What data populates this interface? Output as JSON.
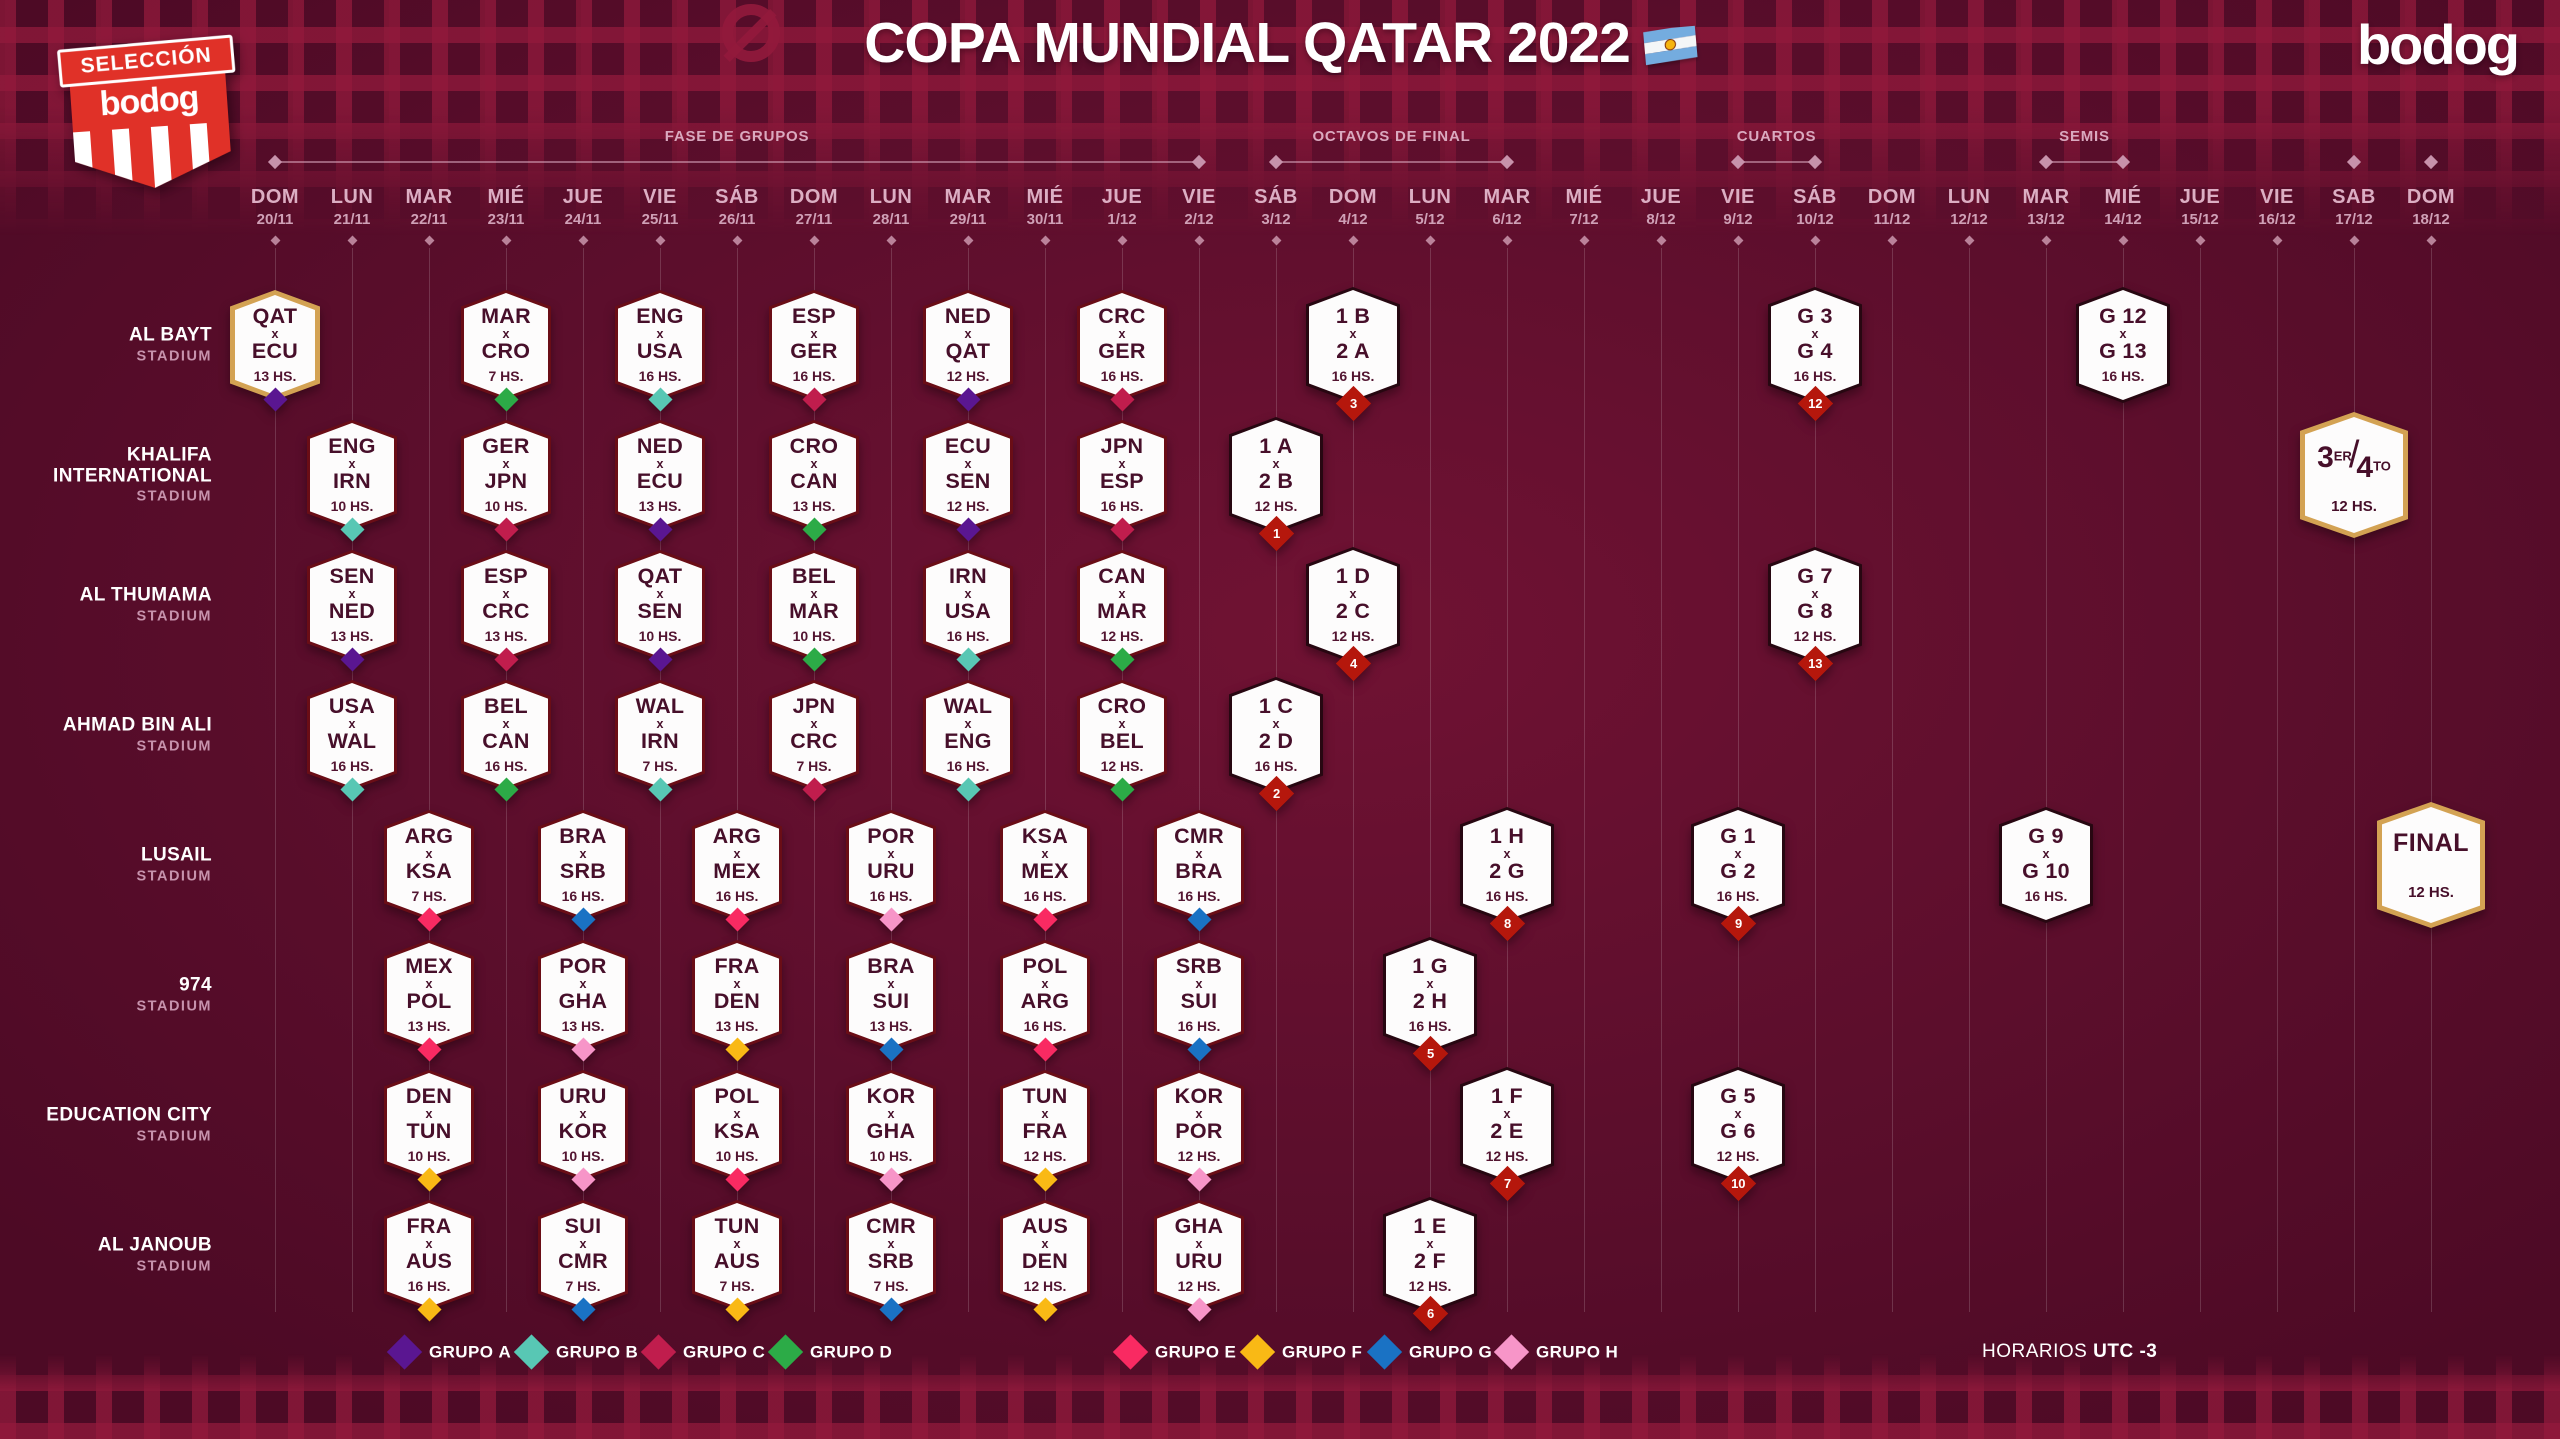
{
  "title": "COPA MUNDIAL QATAR 2022",
  "brand_logo": "bodog",
  "badge": {
    "top": "SELECCIÓN",
    "word": "bodog"
  },
  "footer": {
    "horarios_label": "HORARIOS",
    "utc_label": "UTC -3"
  },
  "palette": {
    "purple": "#5a1691",
    "teal": "#58c7b4",
    "crimson": "#c01d4d",
    "green": "#2cab47",
    "pink": "#f92a62",
    "yellow": "#f9b915",
    "blue": "#1a72c4",
    "lightpink": "#f795c8",
    "badge_red": "#b5170c",
    "gold": "#d3a253",
    "card_border": "#6a0d16",
    "ko_border": "#270711"
  },
  "phases": [
    {
      "label": "FASE DE GRUPOS",
      "from": 0,
      "to": 12
    },
    {
      "label": "OCTAVOS DE FINAL",
      "from": 13,
      "to": 16
    },
    {
      "label": "CUARTOS",
      "from": 19,
      "to": 20
    },
    {
      "label": "SEMIS",
      "from": 23,
      "to": 24
    }
  ],
  "lone_top_diamond_cols": [
    27,
    28
  ],
  "dates": [
    {
      "dow": "DOM",
      "d": "20/11"
    },
    {
      "dow": "LUN",
      "d": "21/11"
    },
    {
      "dow": "MAR",
      "d": "22/11"
    },
    {
      "dow": "MIÉ",
      "d": "23/11"
    },
    {
      "dow": "JUE",
      "d": "24/11"
    },
    {
      "dow": "VIE",
      "d": "25/11"
    },
    {
      "dow": "SÁB",
      "d": "26/11"
    },
    {
      "dow": "DOM",
      "d": "27/11"
    },
    {
      "dow": "LUN",
      "d": "28/11"
    },
    {
      "dow": "MAR",
      "d": "29/11"
    },
    {
      "dow": "MIÉ",
      "d": "30/11"
    },
    {
      "dow": "JUE",
      "d": "1/12"
    },
    {
      "dow": "VIE",
      "d": "2/12"
    },
    {
      "dow": "SÁB",
      "d": "3/12"
    },
    {
      "dow": "DOM",
      "d": "4/12"
    },
    {
      "dow": "LUN",
      "d": "5/12"
    },
    {
      "dow": "MAR",
      "d": "6/12"
    },
    {
      "dow": "MIÉ",
      "d": "7/12"
    },
    {
      "dow": "JUE",
      "d": "8/12"
    },
    {
      "dow": "VIE",
      "d": "9/12"
    },
    {
      "dow": "SÁB",
      "d": "10/12"
    },
    {
      "dow": "DOM",
      "d": "11/12"
    },
    {
      "dow": "LUN",
      "d": "12/12"
    },
    {
      "dow": "MAR",
      "d": "13/12"
    },
    {
      "dow": "MIÉ",
      "d": "14/12"
    },
    {
      "dow": "JUE",
      "d": "15/12"
    },
    {
      "dow": "VIE",
      "d": "16/12"
    },
    {
      "dow": "SAB",
      "d": "17/12"
    },
    {
      "dow": "DOM",
      "d": "18/12"
    }
  ],
  "stadiums": [
    {
      "name": "AL BAYT",
      "sub": "STADIUM"
    },
    {
      "name": "KHALIFA INTERNATIONAL",
      "sub": "STADIUM"
    },
    {
      "name": "AL THUMAMA",
      "sub": "STADIUM"
    },
    {
      "name": "AHMAD BIN ALI",
      "sub": "STADIUM"
    },
    {
      "name": "LUSAIL",
      "sub": "STADIUM"
    },
    {
      "name": "974",
      "sub": "STADIUM"
    },
    {
      "name": "EDUCATION CITY",
      "sub": "STADIUM"
    },
    {
      "name": "AL JANOUB",
      "sub": "STADIUM"
    }
  ],
  "legend": [
    {
      "prefix": "GRUPO",
      "letter": "A",
      "color_key": "purple"
    },
    {
      "prefix": "GRUPO",
      "letter": "B",
      "color_key": "teal"
    },
    {
      "prefix": "GRUPO",
      "letter": "C",
      "color_key": "crimson"
    },
    {
      "prefix": "GRUPO",
      "letter": "D",
      "color_key": "green"
    },
    {
      "prefix": "GRUPO",
      "letter": "E",
      "color_key": "pink"
    },
    {
      "prefix": "GRUPO",
      "letter": "F",
      "color_key": "yellow"
    },
    {
      "prefix": "GRUPO",
      "letter": "G",
      "color_key": "blue"
    },
    {
      "prefix": "GRUPO",
      "letter": "H",
      "color_key": "lightpink"
    }
  ],
  "cards": [
    {
      "type": "group",
      "home": "QAT",
      "away": "ECU",
      "time": "13 HS.",
      "col": 0,
      "row": 0,
      "diamond": "purple",
      "border": "gold"
    },
    {
      "type": "group",
      "home": "ENG",
      "away": "IRN",
      "time": "10 HS.",
      "col": 1,
      "row": 1,
      "diamond": "teal"
    },
    {
      "type": "group",
      "home": "SEN",
      "away": "NED",
      "time": "13 HS.",
      "col": 1,
      "row": 2,
      "diamond": "purple"
    },
    {
      "type": "group",
      "home": "USA",
      "away": "WAL",
      "time": "16 HS.",
      "col": 1,
      "row": 3,
      "diamond": "teal"
    },
    {
      "type": "group",
      "home": "ARG",
      "away": "KSA",
      "time": "7 HS.",
      "col": 2,
      "row": 4,
      "diamond": "pink"
    },
    {
      "type": "group",
      "home": "MEX",
      "away": "POL",
      "time": "13 HS.",
      "col": 2,
      "row": 5,
      "diamond": "pink"
    },
    {
      "type": "group",
      "home": "DEN",
      "away": "TUN",
      "time": "10 HS.",
      "col": 2,
      "row": 6,
      "diamond": "yellow"
    },
    {
      "type": "group",
      "home": "FRA",
      "away": "AUS",
      "time": "16 HS.",
      "col": 2,
      "row": 7,
      "diamond": "yellow"
    },
    {
      "type": "group",
      "home": "MAR",
      "away": "CRO",
      "time": "7 HS.",
      "col": 3,
      "row": 0,
      "diamond": "green"
    },
    {
      "type": "group",
      "home": "GER",
      "away": "JPN",
      "time": "10 HS.",
      "col": 3,
      "row": 1,
      "diamond": "crimson"
    },
    {
      "type": "group",
      "home": "ESP",
      "away": "CRC",
      "time": "13 HS.",
      "col": 3,
      "row": 2,
      "diamond": "crimson"
    },
    {
      "type": "group",
      "home": "BEL",
      "away": "CAN",
      "time": "16 HS.",
      "col": 3,
      "row": 3,
      "diamond": "green"
    },
    {
      "type": "group",
      "home": "BRA",
      "away": "SRB",
      "time": "16 HS.",
      "col": 4,
      "row": 4,
      "diamond": "blue"
    },
    {
      "type": "group",
      "home": "POR",
      "away": "GHA",
      "time": "13 HS.",
      "col": 4,
      "row": 5,
      "diamond": "lightpink"
    },
    {
      "type": "group",
      "home": "URU",
      "away": "KOR",
      "time": "10 HS.",
      "col": 4,
      "row": 6,
      "diamond": "lightpink"
    },
    {
      "type": "group",
      "home": "SUI",
      "away": "CMR",
      "time": "7 HS.",
      "col": 4,
      "row": 7,
      "diamond": "blue"
    },
    {
      "type": "group",
      "home": "ENG",
      "away": "USA",
      "time": "16 HS.",
      "col": 5,
      "row": 0,
      "diamond": "teal"
    },
    {
      "type": "group",
      "home": "NED",
      "away": "ECU",
      "time": "13 HS.",
      "col": 5,
      "row": 1,
      "diamond": "purple"
    },
    {
      "type": "group",
      "home": "QAT",
      "away": "SEN",
      "time": "10 HS.",
      "col": 5,
      "row": 2,
      "diamond": "purple"
    },
    {
      "type": "group",
      "home": "WAL",
      "away": "IRN",
      "time": "7 HS.",
      "col": 5,
      "row": 3,
      "diamond": "teal"
    },
    {
      "type": "group",
      "home": "ARG",
      "away": "MEX",
      "time": "16 HS.",
      "col": 6,
      "row": 4,
      "diamond": "pink"
    },
    {
      "type": "group",
      "home": "FRA",
      "away": "DEN",
      "time": "13 HS.",
      "col": 6,
      "row": 5,
      "diamond": "yellow"
    },
    {
      "type": "group",
      "home": "POL",
      "away": "KSA",
      "time": "10 HS.",
      "col": 6,
      "row": 6,
      "diamond": "pink"
    },
    {
      "type": "group",
      "home": "TUN",
      "away": "AUS",
      "time": "7 HS.",
      "col": 6,
      "row": 7,
      "diamond": "yellow"
    },
    {
      "type": "group",
      "home": "ESP",
      "away": "GER",
      "time": "16 HS.",
      "col": 7,
      "row": 0,
      "diamond": "crimson"
    },
    {
      "type": "group",
      "home": "CRO",
      "away": "CAN",
      "time": "13 HS.",
      "col": 7,
      "row": 1,
      "diamond": "green"
    },
    {
      "type": "group",
      "home": "BEL",
      "away": "MAR",
      "time": "10 HS.",
      "col": 7,
      "row": 2,
      "diamond": "green"
    },
    {
      "type": "group",
      "home": "JPN",
      "away": "CRC",
      "time": "7 HS.",
      "col": 7,
      "row": 3,
      "diamond": "crimson"
    },
    {
      "type": "group",
      "home": "POR",
      "away": "URU",
      "time": "16 HS.",
      "col": 8,
      "row": 4,
      "diamond": "lightpink"
    },
    {
      "type": "group",
      "home": "BRA",
      "away": "SUI",
      "time": "13 HS.",
      "col": 8,
      "row": 5,
      "diamond": "blue"
    },
    {
      "type": "group",
      "home": "KOR",
      "away": "GHA",
      "time": "10 HS.",
      "col": 8,
      "row": 6,
      "diamond": "lightpink"
    },
    {
      "type": "group",
      "home": "CMR",
      "away": "SRB",
      "time": "7 HS.",
      "col": 8,
      "row": 7,
      "diamond": "blue"
    },
    {
      "type": "group",
      "home": "NED",
      "away": "QAT",
      "time": "12 HS.",
      "col": 9,
      "row": 0,
      "diamond": "purple"
    },
    {
      "type": "group",
      "home": "ECU",
      "away": "SEN",
      "time": "12 HS.",
      "col": 9,
      "row": 1,
      "diamond": "purple"
    },
    {
      "type": "group",
      "home": "IRN",
      "away": "USA",
      "time": "16 HS.",
      "col": 9,
      "row": 2,
      "diamond": "teal"
    },
    {
      "type": "group",
      "home": "WAL",
      "away": "ENG",
      "time": "16 HS.",
      "col": 9,
      "row": 3,
      "diamond": "teal"
    },
    {
      "type": "group",
      "home": "KSA",
      "away": "MEX",
      "time": "16 HS.",
      "col": 10,
      "row": 4,
      "diamond": "pink"
    },
    {
      "type": "group",
      "home": "POL",
      "away": "ARG",
      "time": "16 HS.",
      "col": 10,
      "row": 5,
      "diamond": "pink"
    },
    {
      "type": "group",
      "home": "TUN",
      "away": "FRA",
      "time": "12 HS.",
      "col": 10,
      "row": 6,
      "diamond": "yellow"
    },
    {
      "type": "group",
      "home": "AUS",
      "away": "DEN",
      "time": "12 HS.",
      "col": 10,
      "row": 7,
      "diamond": "yellow"
    },
    {
      "type": "group",
      "home": "CRC",
      "away": "GER",
      "time": "16 HS.",
      "col": 11,
      "row": 0,
      "diamond": "crimson"
    },
    {
      "type": "group",
      "home": "JPN",
      "away": "ESP",
      "time": "16 HS.",
      "col": 11,
      "row": 1,
      "diamond": "crimson"
    },
    {
      "type": "group",
      "home": "CAN",
      "away": "MAR",
      "time": "12 HS.",
      "col": 11,
      "row": 2,
      "diamond": "green"
    },
    {
      "type": "group",
      "home": "CRO",
      "away": "BEL",
      "time": "12 HS.",
      "col": 11,
      "row": 3,
      "diamond": "green"
    },
    {
      "type": "group",
      "home": "CMR",
      "away": "BRA",
      "time": "16 HS.",
      "col": 12,
      "row": 4,
      "diamond": "blue"
    },
    {
      "type": "group",
      "home": "SRB",
      "away": "SUI",
      "time": "16 HS.",
      "col": 12,
      "row": 5,
      "diamond": "blue"
    },
    {
      "type": "group",
      "home": "KOR",
      "away": "POR",
      "time": "12 HS.",
      "col": 12,
      "row": 6,
      "diamond": "lightpink"
    },
    {
      "type": "group",
      "home": "GHA",
      "away": "URU",
      "time": "12 HS.",
      "col": 12,
      "row": 7,
      "diamond": "lightpink"
    },
    {
      "type": "ko",
      "home": "1 A",
      "away": "2 B",
      "time": "12 HS.",
      "col": 13,
      "row": 1,
      "num": "1"
    },
    {
      "type": "ko",
      "home": "1 C",
      "away": "2 D",
      "time": "16 HS.",
      "col": 13,
      "row": 3,
      "num": "2"
    },
    {
      "type": "ko",
      "home": "1 B",
      "away": "2 A",
      "time": "16 HS.",
      "col": 14,
      "row": 0,
      "num": "3"
    },
    {
      "type": "ko",
      "home": "1 D",
      "away": "2 C",
      "time": "12 HS.",
      "col": 14,
      "row": 2,
      "num": "4"
    },
    {
      "type": "ko",
      "home": "1 G",
      "away": "2 H",
      "time": "16 HS.",
      "col": 15,
      "row": 5,
      "num": "5"
    },
    {
      "type": "ko",
      "home": "1 E",
      "away": "2 F",
      "time": "12 HS.",
      "col": 15,
      "row": 7,
      "num": "6"
    },
    {
      "type": "ko",
      "home": "1 F",
      "away": "2 E",
      "time": "12 HS.",
      "col": 16,
      "row": 6,
      "num": "7"
    },
    {
      "type": "ko",
      "home": "1 H",
      "away": "2 G",
      "time": "16 HS.",
      "col": 16,
      "row": 4,
      "num": "8"
    },
    {
      "type": "ko",
      "home": "G 1",
      "away": "G 2",
      "time": "16 HS.",
      "col": 19,
      "row": 4,
      "num": "9"
    },
    {
      "type": "ko",
      "home": "G 5",
      "away": "G 6",
      "time": "12 HS.",
      "col": 19,
      "row": 6,
      "num": "10"
    },
    {
      "type": "ko",
      "home": "G 3",
      "away": "G 4",
      "time": "16 HS.",
      "col": 20,
      "row": 0,
      "num": "12"
    },
    {
      "type": "ko",
      "home": "G 7",
      "away": "G 8",
      "time": "12 HS.",
      "col": 20,
      "row": 2,
      "num": "13"
    },
    {
      "type": "ko",
      "home": "G 9",
      "away": "G 10",
      "time": "16 HS.",
      "col": 23,
      "row": 4
    },
    {
      "type": "ko",
      "home": "G 12",
      "away": "G 13",
      "time": "16 HS.",
      "col": 24,
      "row": 0
    },
    {
      "type": "third",
      "num_a": "3",
      "sup_a": "ER",
      "num_b": "4",
      "sup_b": "TO",
      "time": "12 HS.",
      "col": 27,
      "row": 1,
      "border": "gold"
    },
    {
      "type": "final",
      "label": "FINAL",
      "time": "12 HS.",
      "col": 28,
      "row": 4,
      "border": "gold"
    }
  ]
}
